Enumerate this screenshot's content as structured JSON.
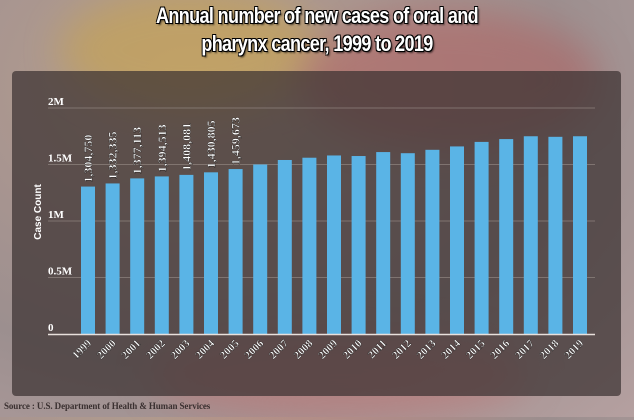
{
  "title_line1": "Annual number of new cases of oral and",
  "title_line2": "pharynx cancer, 1999 to 2019",
  "source": "Source : U.S. Department of Health & Human Services",
  "colors": {
    "bar": "#5ab4e6",
    "panel": "#3c3232",
    "text": "#ffffff",
    "grid": "#9a8f8a"
  },
  "chart_data": {
    "type": "bar",
    "title": "Annual number of new cases of oral and pharynx cancer, 1999 to 2019",
    "xlabel": "",
    "ylabel": "Case Count",
    "ylim": [
      0,
      2000000
    ],
    "yticks": [
      0,
      500000,
      1000000,
      1500000,
      2000000
    ],
    "ytick_labels": [
      "0",
      "0.5M",
      "1M",
      "1.5M",
      "2M"
    ],
    "grid": true,
    "categories": [
      "1999",
      "2000",
      "2001",
      "2002",
      "2003",
      "2004",
      "2005",
      "2006",
      "2007",
      "2008",
      "2009",
      "2010",
      "2011",
      "2012",
      "2013",
      "2014",
      "2015",
      "2016",
      "2017",
      "2018",
      "2019"
    ],
    "values": [
      1304750,
      1332335,
      1377113,
      1394513,
      1408081,
      1430805,
      1459673,
      1500000,
      1540000,
      1560000,
      1580000,
      1575000,
      1610000,
      1600000,
      1630000,
      1660000,
      1700000,
      1725000,
      1750000,
      1745000,
      1750000
    ],
    "data_labels": [
      "1,304,750",
      "1,332,335",
      "1,377,113",
      "1,394,513",
      "1,408,081",
      "1,430,805",
      "1,459,673",
      null,
      null,
      null,
      null,
      null,
      null,
      null,
      null,
      null,
      null,
      null,
      null,
      null,
      null
    ]
  }
}
